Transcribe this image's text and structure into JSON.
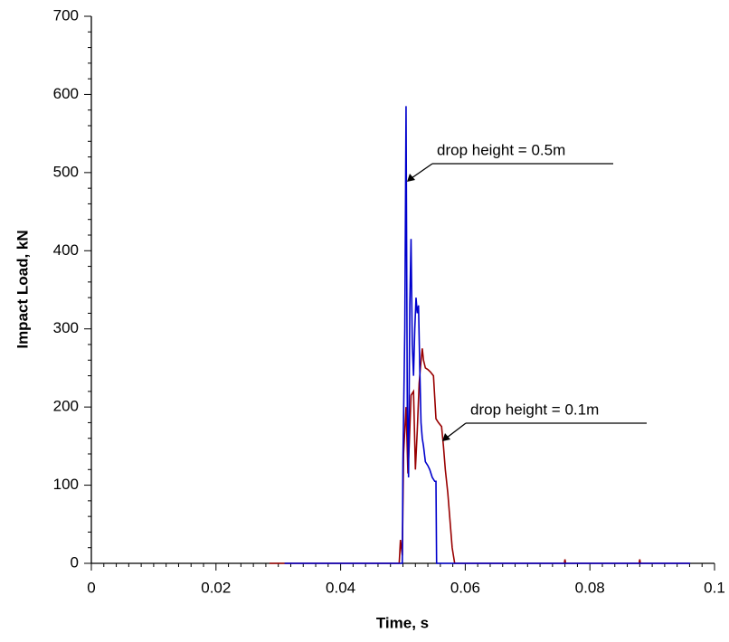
{
  "chart_data": {
    "type": "line",
    "xlabel": "Time, s",
    "ylabel": "Impact Load, kN",
    "xlim": [
      0,
      0.1
    ],
    "ylim": [
      0,
      700
    ],
    "xticks": [
      0,
      0.02,
      0.04,
      0.06,
      0.08,
      0.1
    ],
    "yticks": [
      0,
      100,
      200,
      300,
      400,
      500,
      600,
      700
    ],
    "annotations": [
      "drop height = 0.5m",
      "drop height = 0.1m"
    ],
    "series": [
      {
        "color": "#990000",
        "x": [
          0.0286,
          0.0494,
          0.0496,
          0.0499,
          0.0501,
          0.0505,
          0.0508,
          0.051,
          0.0513,
          0.0517,
          0.052,
          0.0523,
          0.0526,
          0.0528,
          0.0531,
          0.0533,
          0.0536,
          0.054,
          0.0544,
          0.0549,
          0.0553,
          0.0557,
          0.0562,
          0.0565,
          0.0568,
          0.0572,
          0.0576,
          0.0579,
          0.0583,
          0.0759,
          0.076,
          0.0761,
          0.0879,
          0.088,
          0.0881,
          0.096
        ],
        "values": [
          0,
          0,
          30,
          10,
          140,
          200,
          115,
          150,
          215,
          220,
          120,
          170,
          230,
          250,
          275,
          260,
          250,
          248,
          245,
          240,
          185,
          180,
          175,
          150,
          120,
          90,
          50,
          20,
          0,
          0,
          5,
          0,
          0,
          5,
          0,
          0
        ]
      },
      {
        "color": "#0000cc",
        "x": [
          0.031,
          0.0499,
          0.05,
          0.0503,
          0.0505,
          0.0507,
          0.0509,
          0.0511,
          0.0513,
          0.0515,
          0.0517,
          0.0519,
          0.0521,
          0.0523,
          0.0525,
          0.0527,
          0.0529,
          0.0531,
          0.0533,
          0.0536,
          0.054,
          0.0543,
          0.0547,
          0.0551,
          0.0553,
          0.0554,
          0.0961
        ],
        "values": [
          0,
          0,
          130,
          300,
          585,
          200,
          110,
          330,
          415,
          280,
          240,
          300,
          340,
          320,
          330,
          250,
          180,
          160,
          150,
          130,
          125,
          120,
          110,
          105,
          105,
          0,
          0
        ]
      }
    ]
  }
}
